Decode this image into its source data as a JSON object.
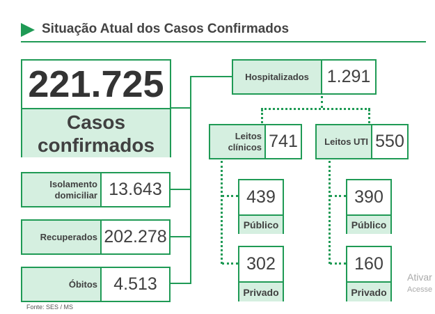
{
  "title": "Situação Atual dos Casos Confirmados",
  "total": {
    "value": "221.725",
    "label": "Casos confirmados"
  },
  "left": [
    {
      "label": "Isolamento domiciliar",
      "value": "13.643"
    },
    {
      "label": "Recuperados",
      "value": "202.278"
    },
    {
      "label": "Óbitos",
      "value": "4.513"
    }
  ],
  "hospital": {
    "label": "Hospitalizados",
    "value": "1.291"
  },
  "clinicos": {
    "label": "Leitos clínicos",
    "value": "741",
    "publico": {
      "value": "439",
      "label": "Público"
    },
    "privado": {
      "value": "302",
      "label": "Privado"
    }
  },
  "uti": {
    "label": "Leitos UTI",
    "value": "550",
    "publico": {
      "value": "390",
      "label": "Público"
    },
    "privado": {
      "value": "160",
      "label": "Privado"
    }
  },
  "source": "Fonte: SES / MS",
  "watermark": {
    "line1": "Ativar",
    "line2": "Acesse"
  },
  "colors": {
    "accent": "#1f9a55",
    "fill": "#d5efe0"
  }
}
